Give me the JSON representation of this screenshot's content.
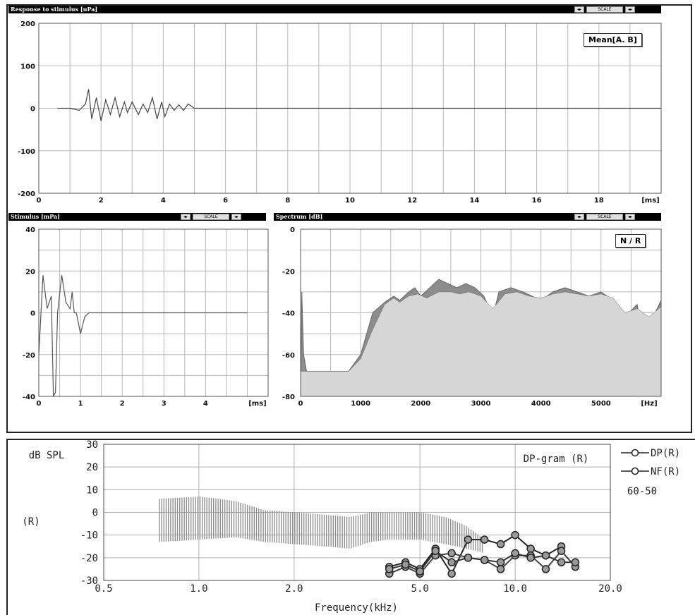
{
  "panels": {
    "response": {
      "title": "Response to stimulus [uPa]",
      "legend": "Mean[A. B]",
      "button": "SCALE"
    },
    "stimulus": {
      "title": "Stimulus [mPa]",
      "button": "SCALE"
    },
    "spectrum": {
      "title": "Spectrum [dB]",
      "legend": "N / R",
      "button": "SCALE"
    },
    "dpgram": {
      "ylabel": "dB SPL",
      "ear": "(R)",
      "plot_title": "DP-gram (R)",
      "legend_dp": "DP(R)",
      "legend_nf": "NF(R)",
      "note": "60-50",
      "xlabel": "Frequency(kHz)"
    }
  },
  "chart_data": [
    {
      "type": "line",
      "title": "Response to stimulus [uPa]",
      "x_unit": "[ms]",
      "xlim": [
        0,
        20
      ],
      "ylim": [
        -200,
        200
      ],
      "x_ticks": [
        0,
        2,
        4,
        6,
        8,
        10,
        12,
        14,
        16,
        18
      ],
      "y_ticks": [
        200,
        100,
        0,
        -100,
        -200
      ],
      "legend": "Mean[A. B]",
      "x": [
        0.6,
        1.0,
        1.3,
        1.5,
        1.6,
        1.7,
        1.85,
        2.0,
        2.15,
        2.3,
        2.45,
        2.6,
        2.75,
        2.85,
        3.0,
        3.2,
        3.35,
        3.5,
        3.65,
        3.8,
        3.95,
        4.05,
        4.2,
        4.35,
        4.5,
        4.65,
        4.8,
        5.0,
        20.0
      ],
      "y": [
        0,
        0,
        -5,
        10,
        45,
        -25,
        25,
        -30,
        20,
        -15,
        25,
        -20,
        15,
        -10,
        15,
        -15,
        10,
        -10,
        25,
        -25,
        15,
        -20,
        10,
        -5,
        8,
        -5,
        10,
        0,
        0
      ]
    },
    {
      "type": "line",
      "title": "Stimulus [mPa]",
      "x_unit": "[ms]",
      "xlim": [
        0,
        5.5
      ],
      "ylim": [
        -40,
        40
      ],
      "x_ticks": [
        0,
        1,
        2,
        3,
        4
      ],
      "y_ticks": [
        40,
        20,
        0,
        -20,
        -40
      ],
      "x": [
        0,
        0.1,
        0.2,
        0.3,
        0.35,
        0.4,
        0.45,
        0.55,
        0.65,
        0.75,
        0.8,
        0.85,
        0.9,
        1.0,
        1.1,
        1.2,
        5.0
      ],
      "y": [
        -20,
        18,
        2,
        8,
        -40,
        -38,
        0,
        18,
        5,
        2,
        10,
        0,
        0,
        -10,
        -2,
        0,
        0
      ]
    },
    {
      "type": "area",
      "title": "Spectrum [dB]",
      "x_unit": "[Hz]",
      "xlim": [
        0,
        6000
      ],
      "ylim": [
        -80,
        0
      ],
      "x_ticks": [
        0,
        1000,
        2000,
        3000,
        4000,
        5000
      ],
      "y_ticks": [
        0,
        -20,
        -40,
        -60,
        -80
      ],
      "legend": "N / R",
      "series": [
        {
          "name": "R",
          "x": [
            0,
            20,
            50,
            100,
            800,
            1000,
            1100,
            1200,
            1400,
            1550,
            1650,
            1800,
            1900,
            2000,
            2150,
            2300,
            2450,
            2600,
            2750,
            2900,
            3050,
            3200,
            3300,
            3500,
            3700,
            3850,
            4000,
            4200,
            4400,
            4600,
            4800,
            5000,
            5200,
            5400,
            5600,
            5800,
            5900,
            6000
          ],
          "y": [
            -80,
            -30,
            -60,
            -68,
            -68,
            -60,
            -50,
            -40,
            -35,
            -32,
            -34,
            -30,
            -28,
            -32,
            -28,
            -24,
            -26,
            -28,
            -26,
            -28,
            -32,
            -42,
            -30,
            -28,
            -30,
            -32,
            -34,
            -30,
            -28,
            -30,
            -32,
            -30,
            -34,
            -42,
            -36,
            -65,
            -40,
            -34
          ]
        },
        {
          "name": "N",
          "x": [
            0,
            800,
            1000,
            1200,
            1400,
            1550,
            1650,
            1800,
            1950,
            2100,
            2300,
            2500,
            2650,
            2800,
            3000,
            3200,
            3400,
            3600,
            3800,
            4000,
            4200,
            4400,
            4600,
            4800,
            5000,
            5200,
            5400,
            5600,
            5800,
            6000
          ],
          "y": [
            -68,
            -68,
            -62,
            -48,
            -36,
            -33,
            -35,
            -32,
            -31,
            -33,
            -30,
            -30,
            -31,
            -30,
            -32,
            -38,
            -31,
            -30,
            -32,
            -33,
            -31,
            -30,
            -31,
            -32,
            -31,
            -33,
            -40,
            -38,
            -42,
            -37
          ]
        }
      ]
    },
    {
      "type": "line",
      "title": "DP-gram (R)",
      "xlabel": "Frequency(kHz)",
      "ylabel": "dB SPL",
      "x_scale": "log",
      "xlim": [
        0.5,
        20.0
      ],
      "ylim": [
        -30,
        30
      ],
      "x_ticks": [
        "0.5",
        "1.0",
        "2.0",
        "5.0",
        "10.0",
        "20.0"
      ],
      "y_ticks": [
        30,
        20,
        10,
        0,
        -10,
        -20,
        -30
      ],
      "band": {
        "x_start": 0.75,
        "x_end": 8.0,
        "upper": [
          [
            0.75,
            6
          ],
          [
            1.0,
            7
          ],
          [
            1.3,
            5
          ],
          [
            1.6,
            1
          ],
          [
            2.0,
            0
          ],
          [
            2.5,
            -1
          ],
          [
            3.0,
            -2
          ],
          [
            3.5,
            0
          ],
          [
            4.0,
            0
          ],
          [
            5.0,
            0
          ],
          [
            6.0,
            -2
          ],
          [
            7.0,
            -6
          ],
          [
            8.0,
            -12
          ]
        ],
        "lower": [
          [
            0.75,
            -13
          ],
          [
            1.0,
            -12
          ],
          [
            1.3,
            -11
          ],
          [
            1.6,
            -13
          ],
          [
            2.0,
            -14
          ],
          [
            2.5,
            -15
          ],
          [
            3.0,
            -16
          ],
          [
            3.5,
            -13
          ],
          [
            4.0,
            -12
          ],
          [
            5.0,
            -12
          ],
          [
            6.0,
            -14
          ],
          [
            7.0,
            -16
          ],
          [
            8.0,
            -18
          ]
        ]
      },
      "series": [
        {
          "name": "DP(R)",
          "x": [
            4.0,
            4.5,
            5.0,
            5.6,
            6.3,
            7.1,
            8.0,
            9.0,
            10.0,
            11.2,
            12.5,
            14.0
          ],
          "y": [
            -24,
            -22,
            -25,
            -16,
            -27,
            -12,
            -12,
            -14,
            -10,
            -16,
            -19,
            -15
          ]
        },
        {
          "name": "NF(R)",
          "x": [
            4.0,
            4.5,
            5.0,
            5.6,
            6.3,
            7.1,
            8.0,
            9.0,
            10.0,
            11.2,
            12.5,
            14.0,
            15.5
          ],
          "y": [
            -27,
            -24,
            -27,
            -19,
            -18,
            -20,
            -21,
            -25,
            -19,
            -19,
            -25,
            -17,
            -24
          ]
        },
        {
          "name": "",
          "x": [
            4.0,
            4.5,
            5.0,
            5.6,
            6.3,
            7.1,
            8.0,
            9.0,
            10.0,
            11.2,
            12.5,
            14.0,
            15.5
          ],
          "y": [
            -25,
            -23,
            -26,
            -17,
            -22,
            -20,
            -21,
            -22,
            -18,
            -20,
            -19,
            -22,
            -22
          ]
        }
      ],
      "annotations": [
        "DP-gram (R)",
        "60-50",
        "(R)"
      ]
    }
  ]
}
